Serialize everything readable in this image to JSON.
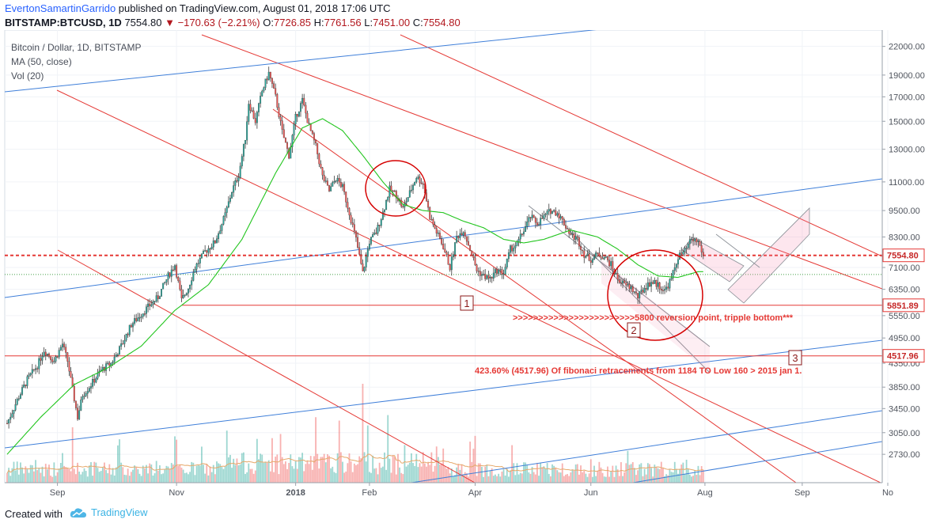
{
  "header": {
    "author": "EvertonSamartinGarrido",
    "published": "published on TradingView.com, August 01, 2018 17:06 UTC",
    "symbol": "BITSTAMP:BTCUSD, 1D",
    "price": "7554.80",
    "change": "−170.63 (−2.21%)",
    "o_label": "O:",
    "o_value": "7726.85",
    "h_label": "H:",
    "h_value": "7761.56",
    "l_label": "L:",
    "l_value": "7451.00",
    "c_label": "C:",
    "c_value": "7554.80"
  },
  "legend": {
    "title": "Bitcoin / Dollar, 1D, BITSTAMP",
    "ma": "MA (50, close)",
    "vol": "Vol (20)"
  },
  "footer": {
    "created": "Created with",
    "brand": "TradingView",
    "logo_icon": "tradingview-cloud-icon"
  },
  "chart_data": {
    "type": "candlestick",
    "title": "Bitcoin / Dollar, 1D, BITSTAMP",
    "yscale": "log",
    "ylim": [
      2550,
      22600
    ],
    "y_ticks": [
      "22000.00",
      "19000.00",
      "17000.00",
      "15000.00",
      "13000.00",
      "11000.00",
      "9500.00",
      "8300.00",
      "7100.00",
      "6350.00",
      "5550.00",
      "4950.00",
      "4350.00",
      "3850.00",
      "3450.00",
      "3050.00",
      "2730.00"
    ],
    "x_ticks": [
      "Sep",
      "Nov",
      "2018",
      "Feb",
      "Apr",
      "Jun",
      "Aug",
      "Sep",
      "No"
    ],
    "price_labels": [
      {
        "text": "7554.80",
        "value": 7554.8
      },
      {
        "text": "5851.89",
        "value": 5851.89
      },
      {
        "text": "4517.96",
        "value": 4517.96
      }
    ],
    "price_path": [
      {
        "t": 0,
        "p": 3200
      },
      {
        "t": 6,
        "p": 3600
      },
      {
        "t": 12,
        "p": 4000
      },
      {
        "t": 18,
        "p": 4300
      },
      {
        "t": 22,
        "p": 4650
      },
      {
        "t": 28,
        "p": 4400
      },
      {
        "t": 33,
        "p": 4800
      },
      {
        "t": 36,
        "p": 4400
      },
      {
        "t": 39,
        "p": 3800
      },
      {
        "t": 42,
        "p": 3300
      },
      {
        "t": 45,
        "p": 3700
      },
      {
        "t": 50,
        "p": 3900
      },
      {
        "t": 56,
        "p": 4200
      },
      {
        "t": 62,
        "p": 4350
      },
      {
        "t": 68,
        "p": 4750
      },
      {
        "t": 74,
        "p": 5300
      },
      {
        "t": 80,
        "p": 5600
      },
      {
        "t": 84,
        "p": 5800
      },
      {
        "t": 90,
        "p": 6100
      },
      {
        "t": 96,
        "p": 6800
      },
      {
        "t": 100,
        "p": 7200
      },
      {
        "t": 104,
        "p": 6000
      },
      {
        "t": 108,
        "p": 6400
      },
      {
        "t": 112,
        "p": 7100
      },
      {
        "t": 118,
        "p": 7700
      },
      {
        "t": 124,
        "p": 8100
      },
      {
        "t": 130,
        "p": 9300
      },
      {
        "t": 134,
        "p": 10500
      },
      {
        "t": 138,
        "p": 11400
      },
      {
        "t": 142,
        "p": 13800
      },
      {
        "t": 144,
        "p": 16500
      },
      {
        "t": 148,
        "p": 15000
      },
      {
        "t": 152,
        "p": 17500
      },
      {
        "t": 156,
        "p": 19200
      },
      {
        "t": 160,
        "p": 17000
      },
      {
        "t": 164,
        "p": 14200
      },
      {
        "t": 168,
        "p": 12600
      },
      {
        "t": 172,
        "p": 15300
      },
      {
        "t": 176,
        "p": 16700
      },
      {
        "t": 180,
        "p": 14600
      },
      {
        "t": 184,
        "p": 13200
      },
      {
        "t": 188,
        "p": 11300
      },
      {
        "t": 192,
        "p": 10500
      },
      {
        "t": 196,
        "p": 11200
      },
      {
        "t": 200,
        "p": 10700
      },
      {
        "t": 204,
        "p": 9400
      },
      {
        "t": 208,
        "p": 8200
      },
      {
        "t": 212,
        "p": 6900
      },
      {
        "t": 216,
        "p": 8100
      },
      {
        "t": 220,
        "p": 8500
      },
      {
        "t": 224,
        "p": 9400
      },
      {
        "t": 228,
        "p": 10600
      },
      {
        "t": 232,
        "p": 10300
      },
      {
        "t": 236,
        "p": 9600
      },
      {
        "t": 240,
        "p": 10400
      },
      {
        "t": 244,
        "p": 11300
      },
      {
        "t": 248,
        "p": 10900
      },
      {
        "t": 252,
        "p": 9200
      },
      {
        "t": 256,
        "p": 8500
      },
      {
        "t": 260,
        "p": 7900
      },
      {
        "t": 264,
        "p": 7100
      },
      {
        "t": 268,
        "p": 8300
      },
      {
        "t": 272,
        "p": 8600
      },
      {
        "t": 276,
        "p": 7800
      },
      {
        "t": 280,
        "p": 7000
      },
      {
        "t": 284,
        "p": 6800
      },
      {
        "t": 288,
        "p": 6700
      },
      {
        "t": 292,
        "p": 7000
      },
      {
        "t": 296,
        "p": 6900
      },
      {
        "t": 300,
        "p": 7800
      },
      {
        "t": 304,
        "p": 8000
      },
      {
        "t": 308,
        "p": 8600
      },
      {
        "t": 312,
        "p": 9200
      },
      {
        "t": 316,
        "p": 8900
      },
      {
        "t": 320,
        "p": 9200
      },
      {
        "t": 324,
        "p": 9500
      },
      {
        "t": 328,
        "p": 9400
      },
      {
        "t": 332,
        "p": 8900
      },
      {
        "t": 336,
        "p": 8400
      },
      {
        "t": 340,
        "p": 8200
      },
      {
        "t": 344,
        "p": 7600
      },
      {
        "t": 348,
        "p": 7400
      },
      {
        "t": 352,
        "p": 7600
      },
      {
        "t": 356,
        "p": 7500
      },
      {
        "t": 360,
        "p": 7200
      },
      {
        "t": 364,
        "p": 6700
      },
      {
        "t": 368,
        "p": 6500
      },
      {
        "t": 372,
        "p": 6400
      },
      {
        "t": 376,
        "p": 6100
      },
      {
        "t": 380,
        "p": 6400
      },
      {
        "t": 384,
        "p": 6600
      },
      {
        "t": 388,
        "p": 6500
      },
      {
        "t": 392,
        "p": 6300
      },
      {
        "t": 396,
        "p": 6700
      },
      {
        "t": 400,
        "p": 7500
      },
      {
        "t": 404,
        "p": 7700
      },
      {
        "t": 408,
        "p": 8200
      },
      {
        "t": 412,
        "p": 8100
      },
      {
        "t": 415,
        "p": 7555
      }
    ],
    "series": [
      {
        "name": "MA (50, close)",
        "points": [
          {
            "t": 0,
            "p": 2730
          },
          {
            "t": 20,
            "p": 3300
          },
          {
            "t": 40,
            "p": 3900
          },
          {
            "t": 60,
            "p": 4250
          },
          {
            "t": 80,
            "p": 4750
          },
          {
            "t": 100,
            "p": 5700
          },
          {
            "t": 120,
            "p": 6500
          },
          {
            "t": 140,
            "p": 8200
          },
          {
            "t": 160,
            "p": 11500
          },
          {
            "t": 176,
            "p": 14500
          },
          {
            "t": 188,
            "p": 15200
          },
          {
            "t": 200,
            "p": 14300
          },
          {
            "t": 212,
            "p": 12600
          },
          {
            "t": 224,
            "p": 11000
          },
          {
            "t": 236,
            "p": 9800
          },
          {
            "t": 248,
            "p": 9500
          },
          {
            "t": 260,
            "p": 9400
          },
          {
            "t": 272,
            "p": 9000
          },
          {
            "t": 284,
            "p": 8700
          },
          {
            "t": 296,
            "p": 8200
          },
          {
            "t": 308,
            "p": 8050
          },
          {
            "t": 320,
            "p": 8200
          },
          {
            "t": 336,
            "p": 8600
          },
          {
            "t": 352,
            "p": 8300
          },
          {
            "t": 364,
            "p": 7800
          },
          {
            "t": 376,
            "p": 7200
          },
          {
            "t": 388,
            "p": 6800
          },
          {
            "t": 400,
            "p": 6750
          },
          {
            "t": 412,
            "p": 6950
          }
        ]
      }
    ],
    "volume_ma": "Vol (20)",
    "annotations": [
      {
        "text": "1"
      },
      {
        "text": "2"
      },
      {
        "text": "3"
      },
      {
        "text": ">>>>>>>>>>>>>>>>>>>>>>>>5800 reversion point, tripple bottom***"
      },
      {
        "text": "423.60% (4517.96) Of fibonaci retracements from 1184 TO Low 160 > 2015 jan 1."
      }
    ]
  }
}
